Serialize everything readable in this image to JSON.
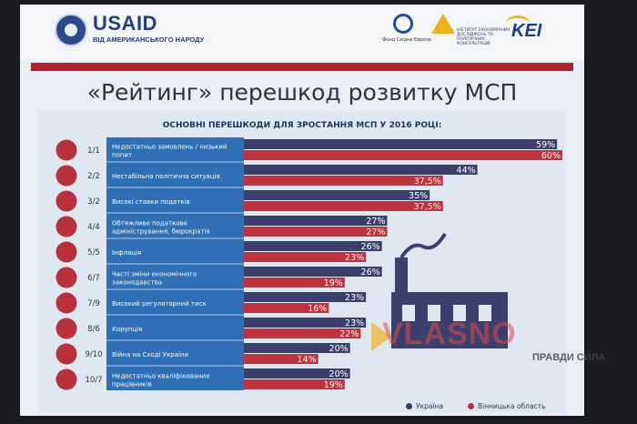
{
  "header": {
    "usaid_brand": "USAID",
    "usaid_tagline": "ВІД АМЕРИКАНСЬКОГО НАРОДУ",
    "fund_caption": "Фонд Східна Європа",
    "institute_caption": "ІНСТИТУТ ЕКОНОМІЧНИХ ДОСЛІДЖЕНЬ ТА ПОЛІТИЧНИХ КОНСУЛЬТАЦІЙ",
    "kei_brand": "KEI"
  },
  "slide": {
    "title": "«Рейтинг» перешкод розвитку МСП"
  },
  "watermark": {
    "brand": "VLASNO",
    "tagline": "ПРАВДИ СИЛА"
  },
  "colors": {
    "ukraine_bar": "#3b3f6e",
    "region_bar": "#c0323c",
    "label_panel": "#2f6fb5",
    "icon_circle": "#b7303a"
  },
  "chart_data": {
    "type": "bar",
    "orientation": "horizontal",
    "title": "ОСНОВНІ ПЕРЕШКОДИ ДЛЯ ЗРОСТАННЯ МСП У 2016 РОЦІ:",
    "categories": [
      "Недостатньо замовлень / низький попит",
      "Нестабільна політична ситуація",
      "Високі ставки податків",
      "Обтяжливе податкове адміністрування, бюрократія",
      "Інфляція",
      "Часті зміни економічного законодавства",
      "Високий регуляторний тиск",
      "Корупція",
      "Війна на Сході України",
      "Недостатньо кваліфікованих працівників"
    ],
    "ranks": [
      "1/1",
      "2/2",
      "3/2",
      "4/4",
      "5/5",
      "6/7",
      "7/9",
      "8/6",
      "9/10",
      "10/7"
    ],
    "icons": [
      "coins-icon",
      "scales-icon",
      "banknote-icon",
      "weight-icon",
      "inflation-chart-icon",
      "refresh-icon",
      "person-icon",
      "handshake-icon",
      "soldier-icon",
      "graduation-cap-icon"
    ],
    "series": [
      {
        "name": "Україна",
        "values": [
          59,
          44,
          35,
          27,
          26,
          26,
          23,
          23,
          20,
          20
        ],
        "labels": [
          "59%",
          "44%",
          "35%",
          "27%",
          "26%",
          "26%",
          "23%",
          "23%",
          "20%",
          "20%"
        ]
      },
      {
        "name": "Вінницька область",
        "values": [
          60,
          37.5,
          37.5,
          27,
          23,
          19,
          16,
          22,
          14,
          19
        ],
        "labels": [
          "60%",
          "37,5%",
          "37,5%",
          "27%",
          "23%",
          "19%",
          "16%",
          "22%",
          "14%",
          "19%"
        ]
      }
    ],
    "xlim": [
      0,
      60
    ],
    "legend_position": "bottom-right",
    "grid": false
  }
}
